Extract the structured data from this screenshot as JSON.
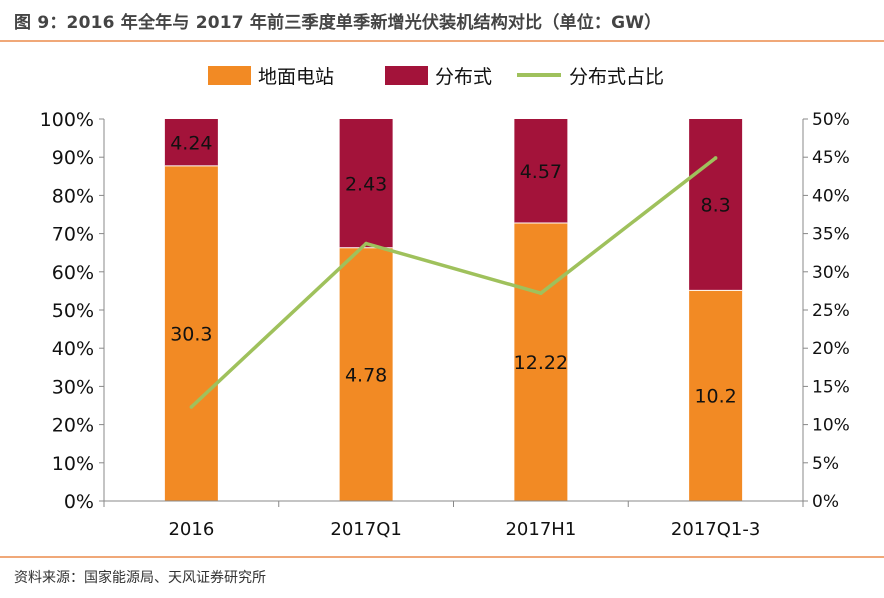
{
  "figure": {
    "title": "图 9：2016 年全年与 2017 年前三季度单季新增光伏装机结构对比（单位：GW）",
    "source": "资料来源：国家能源局、天风证券研究所"
  },
  "colors": {
    "ground": "#f28a24",
    "distributed": "#a3133a",
    "share_line": "#9fc15c",
    "rule": "#f0a878"
  },
  "chart_data": {
    "type": "bar",
    "stacked": true,
    "normalized": true,
    "categories": [
      "2016",
      "2017Q1",
      "2017H1",
      "2017Q1-3"
    ],
    "series": [
      {
        "name": "地面电站",
        "axis": "left",
        "values": [
          30.3,
          4.78,
          12.22,
          10.2
        ]
      },
      {
        "name": "分布式",
        "axis": "left",
        "values": [
          4.24,
          2.43,
          4.57,
          8.3
        ]
      },
      {
        "name": "分布式占比",
        "type": "line",
        "axis": "right",
        "values": [
          12.3,
          33.7,
          27.2,
          44.9
        ]
      }
    ],
    "left_axis": {
      "ylim": [
        0,
        100
      ],
      "ticks": [
        "0%",
        "10%",
        "20%",
        "30%",
        "40%",
        "50%",
        "60%",
        "70%",
        "80%",
        "90%",
        "100%"
      ]
    },
    "right_axis": {
      "ylim": [
        0,
        50
      ],
      "ticks": [
        "0%",
        "5%",
        "10%",
        "15%",
        "20%",
        "25%",
        "30%",
        "35%",
        "40%",
        "45%",
        "50%"
      ]
    },
    "legend": [
      "地面电站",
      "分布式",
      "分布式占比"
    ],
    "legend_position": "top-center",
    "grid": false
  }
}
